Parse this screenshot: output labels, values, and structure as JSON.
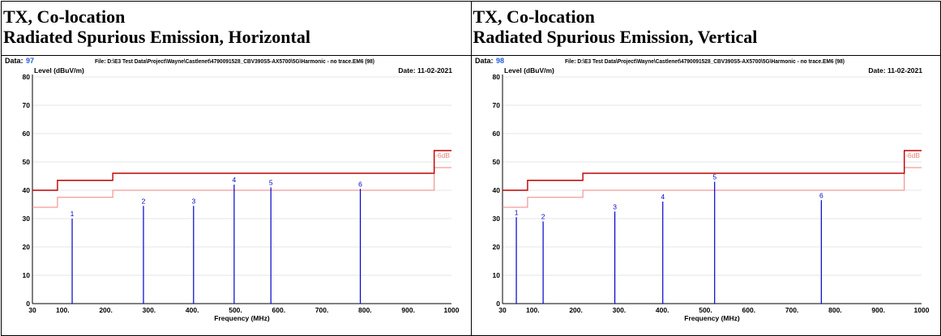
{
  "panels": [
    {
      "title_line1": "TX, Co-location",
      "title_line2": "Radiated Spurious Emission, Horizontal"
    },
    {
      "title_line1": "TX, Co-location",
      "title_line2": "Radiated Spurious Emission, Vertical"
    }
  ],
  "chart_data": [
    {
      "type": "bar",
      "data_label": "Data:",
      "data_value": "97",
      "file_text": "File: D:\\E3 Test Data\\Project\\Wayne\\Castlenet\\4790091528_CBV390S5-AX5700\\5G\\Harmonic - no trace.EM6  (98)",
      "date_text": "Date: 11-02-2021",
      "ylabel": "Level (dBuV/m)",
      "xlabel": "Frequency (MHz)",
      "xlim": [
        30,
        1000
      ],
      "ylim": [
        0,
        80
      ],
      "x_ticks": [
        30,
        100,
        200,
        300,
        400,
        500,
        600,
        700,
        800,
        900,
        1000
      ],
      "x_tick_labels": [
        "30",
        "100.",
        "200.",
        "300.",
        "400.",
        "500.",
        "600.",
        "700.",
        "800.",
        "900.",
        "1000"
      ],
      "y_ticks": [
        0,
        10,
        20,
        30,
        40,
        50,
        60,
        70,
        80
      ],
      "y_tick_labels": [
        "0",
        "10",
        "20",
        "30",
        "40",
        "50",
        "60",
        "70",
        "80"
      ],
      "limit_line": [
        [
          30,
          40
        ],
        [
          88,
          40
        ],
        [
          88,
          43.5
        ],
        [
          216,
          43.5
        ],
        [
          216,
          46
        ],
        [
          960,
          46
        ],
        [
          960,
          54
        ],
        [
          1000,
          54
        ]
      ],
      "margin_line": [
        [
          30,
          34
        ],
        [
          88,
          34
        ],
        [
          88,
          37.5
        ],
        [
          216,
          37.5
        ],
        [
          216,
          40
        ],
        [
          960,
          40
        ],
        [
          960,
          48
        ],
        [
          1000,
          48
        ]
      ],
      "margin_label": "-6dB",
      "colors": {
        "limit": "#c00000",
        "margin": "#f08080",
        "marker": "#0000cc",
        "accent": "#1e5bd8"
      },
      "markers": [
        {
          "label": "1",
          "x": 122,
          "y": 30
        },
        {
          "label": "2",
          "x": 287,
          "y": 34.5
        },
        {
          "label": "3",
          "x": 403,
          "y": 34.5
        },
        {
          "label": "4",
          "x": 497,
          "y": 42
        },
        {
          "label": "5",
          "x": 582,
          "y": 41
        },
        {
          "label": "6",
          "x": 789,
          "y": 40.5
        }
      ]
    },
    {
      "type": "bar",
      "data_label": "Data:",
      "data_value": "98",
      "file_text": "File: D:\\E3 Test Data\\Project\\Wayne\\Castlenet\\4790091528_CBV390S5-AX5700\\5G\\Harmonic - no trace.EM6  (98)",
      "date_text": "Date: 11-02-2021",
      "ylabel": "Level (dBuV/m)",
      "xlabel": "Frequency (MHz)",
      "xlim": [
        30,
        1000
      ],
      "ylim": [
        0,
        80
      ],
      "x_ticks": [
        30,
        100,
        200,
        300,
        400,
        500,
        600,
        700,
        800,
        900,
        1000
      ],
      "x_tick_labels": [
        "30",
        "100.",
        "200.",
        "300.",
        "400.",
        "500.",
        "600.",
        "700.",
        "800.",
        "900.",
        "1000"
      ],
      "y_ticks": [
        0,
        10,
        20,
        30,
        40,
        50,
        60,
        70,
        80
      ],
      "y_tick_labels": [
        "0",
        "10",
        "20",
        "30",
        "40",
        "50",
        "60",
        "70",
        "80"
      ],
      "limit_line": [
        [
          30,
          40
        ],
        [
          88,
          40
        ],
        [
          88,
          43.5
        ],
        [
          216,
          43.5
        ],
        [
          216,
          46
        ],
        [
          960,
          46
        ],
        [
          960,
          54
        ],
        [
          1000,
          54
        ]
      ],
      "margin_line": [
        [
          30,
          34
        ],
        [
          88,
          34
        ],
        [
          88,
          37.5
        ],
        [
          216,
          37.5
        ],
        [
          216,
          40
        ],
        [
          960,
          40
        ],
        [
          960,
          48
        ],
        [
          1000,
          48
        ]
      ],
      "margin_label": "-6dB",
      "colors": {
        "limit": "#c00000",
        "margin": "#f08080",
        "marker": "#0000cc",
        "accent": "#1e5bd8"
      },
      "markers": [
        {
          "label": "1",
          "x": 62,
          "y": 30.5
        },
        {
          "label": "2",
          "x": 124,
          "y": 29
        },
        {
          "label": "3",
          "x": 290,
          "y": 32.5
        },
        {
          "label": "4",
          "x": 401,
          "y": 36
        },
        {
          "label": "5",
          "x": 521,
          "y": 43
        },
        {
          "label": "6",
          "x": 768,
          "y": 36.5
        }
      ]
    }
  ]
}
